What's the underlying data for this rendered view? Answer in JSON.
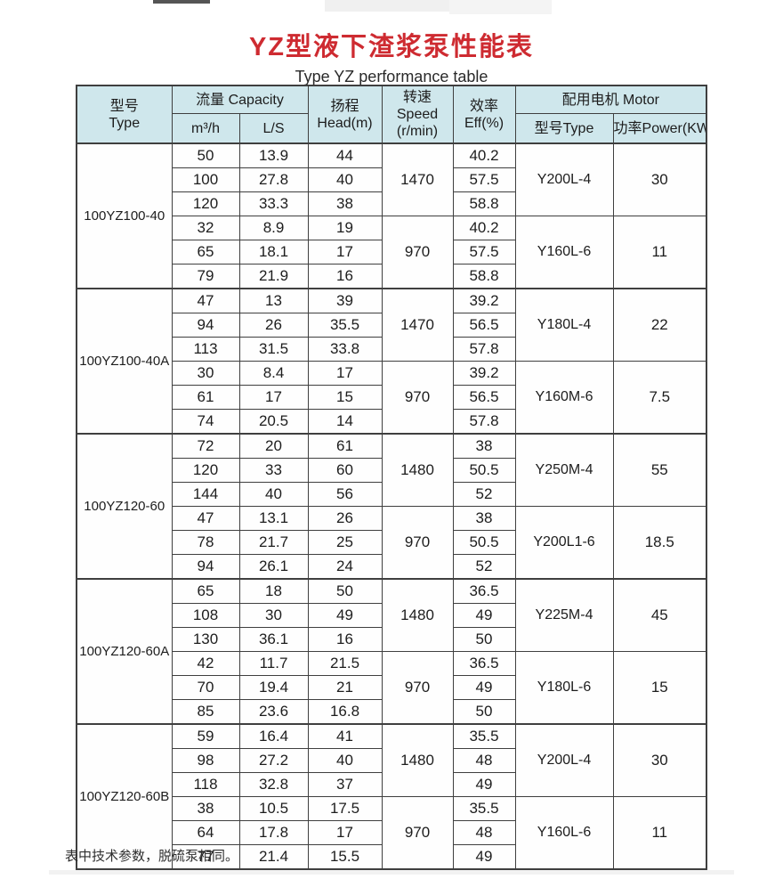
{
  "page": {
    "title": "YZ型液下渣浆泵性能表",
    "subtitle": "Type YZ performance table",
    "footnote": "表中技术参数，脱硫泵相同。"
  },
  "colors": {
    "title_red": "#ce2b31",
    "header_bg": "#cfe7ec",
    "border": "#3f3f3f",
    "text": "#1d1d1d"
  },
  "table": {
    "header": {
      "model_zh": "型号",
      "model_en": "Type",
      "capacity": "流量 Capacity",
      "capacity_m3h": "m³/h",
      "capacity_ls": "L/S",
      "head_zh": "扬程",
      "head_en": "Head(m)",
      "speed_zh": "转速",
      "speed_en": "Speed",
      "speed_unit": "(r/min)",
      "eff_zh": "效率",
      "eff_en": "Eff(%)",
      "motor": "配用电机 Motor",
      "motor_type": "型号Type",
      "motor_power": "功率Power(KW)"
    },
    "groups": [
      {
        "model": "100YZ100-40",
        "sub": [
          {
            "speed": "1470",
            "motor": "Y200L-4",
            "power": "30",
            "rows": [
              [
                "50",
                "13.9",
                "44",
                "40.2"
              ],
              [
                "100",
                "27.8",
                "40",
                "57.5"
              ],
              [
                "120",
                "33.3",
                "38",
                "58.8"
              ]
            ]
          },
          {
            "speed": "970",
            "motor": "Y160L-6",
            "power": "11",
            "rows": [
              [
                "32",
                "8.9",
                "19",
                "40.2"
              ],
              [
                "65",
                "18.1",
                "17",
                "57.5"
              ],
              [
                "79",
                "21.9",
                "16",
                "58.8"
              ]
            ]
          }
        ]
      },
      {
        "model": "100YZ100-40A",
        "sub": [
          {
            "speed": "1470",
            "motor": "Y180L-4",
            "power": "22",
            "rows": [
              [
                "47",
                "13",
                "39",
                "39.2"
              ],
              [
                "94",
                "26",
                "35.5",
                "56.5"
              ],
              [
                "113",
                "31.5",
                "33.8",
                "57.8"
              ]
            ]
          },
          {
            "speed": "970",
            "motor": "Y160M-6",
            "power": "7.5",
            "rows": [
              [
                "30",
                "8.4",
                "17",
                "39.2"
              ],
              [
                "61",
                "17",
                "15",
                "56.5"
              ],
              [
                "74",
                "20.5",
                "14",
                "57.8"
              ]
            ]
          }
        ]
      },
      {
        "model": "100YZ120-60",
        "sub": [
          {
            "speed": "1480",
            "motor": "Y250M-4",
            "power": "55",
            "rows": [
              [
                "72",
                "20",
                "61",
                "38"
              ],
              [
                "120",
                "33",
                "60",
                "50.5"
              ],
              [
                "144",
                "40",
                "56",
                "52"
              ]
            ]
          },
          {
            "speed": "970",
            "motor": "Y200L1-6",
            "power": "18.5",
            "rows": [
              [
                "47",
                "13.1",
                "26",
                "38"
              ],
              [
                "78",
                "21.7",
                "25",
                "50.5"
              ],
              [
                "94",
                "26.1",
                "24",
                "52"
              ]
            ]
          }
        ]
      },
      {
        "model": "100YZ120-60A",
        "sub": [
          {
            "speed": "1480",
            "motor": "Y225M-4",
            "power": "45",
            "rows": [
              [
                "65",
                "18",
                "50",
                "36.5"
              ],
              [
                "108",
                "30",
                "49",
                "49"
              ],
              [
                "130",
                "36.1",
                "16",
                "50"
              ]
            ]
          },
          {
            "speed": "970",
            "motor": "Y180L-6",
            "power": "15",
            "rows": [
              [
                "42",
                "11.7",
                "21.5",
                "36.5"
              ],
              [
                "70",
                "19.4",
                "21",
                "49"
              ],
              [
                "85",
                "23.6",
                "16.8",
                "50"
              ]
            ]
          }
        ]
      },
      {
        "model": "100YZ120-60B",
        "sub": [
          {
            "speed": "1480",
            "motor": "Y200L-4",
            "power": "30",
            "rows": [
              [
                "59",
                "16.4",
                "41",
                "35.5"
              ],
              [
                "98",
                "27.2",
                "40",
                "48"
              ],
              [
                "118",
                "32.8",
                "37",
                "49"
              ]
            ]
          },
          {
            "speed": "970",
            "motor": "Y160L-6",
            "power": "11",
            "rows": [
              [
                "38",
                "10.5",
                "17.5",
                "35.5"
              ],
              [
                "64",
                "17.8",
                "17",
                "48"
              ],
              [
                "77",
                "21.4",
                "15.5",
                "49"
              ]
            ]
          }
        ]
      }
    ]
  }
}
